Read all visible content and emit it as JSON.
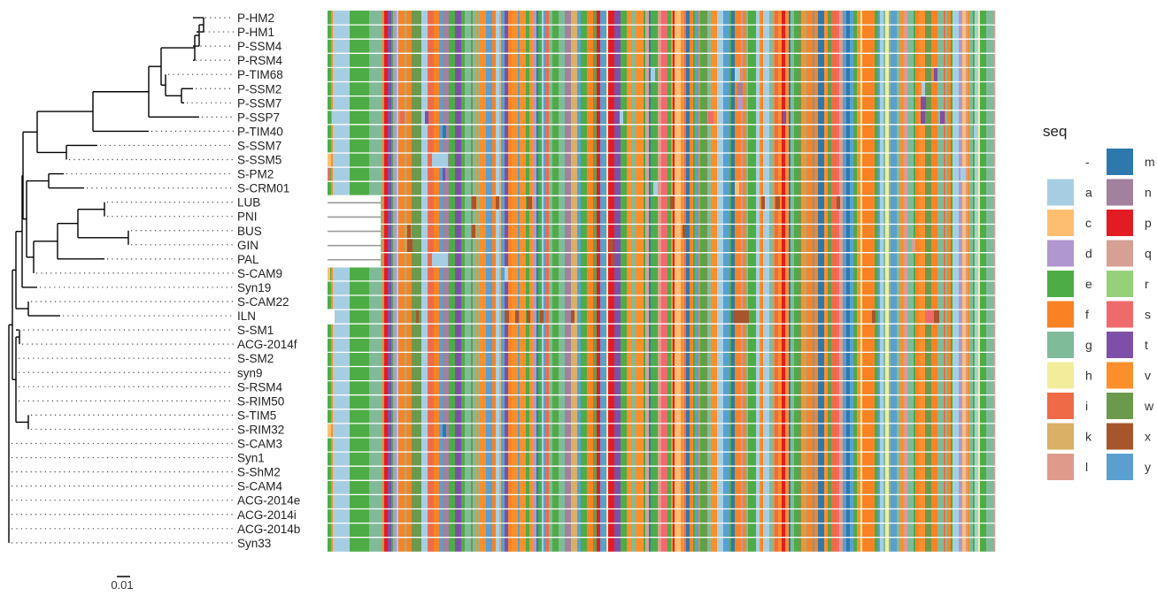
{
  "taxa": [
    "P-HM2",
    "P-HM1",
    "P-SSM4",
    "P-RSM4",
    "P-TIM68",
    "P-SSM2",
    "P-SSM7",
    "P-SSP7",
    "P-TIM40",
    "S-SSM7",
    "S-SSM5",
    "S-PM2",
    "S-CRM01",
    "LUB",
    "PNI",
    "BUS",
    "GIN",
    "PAL",
    "S-CAM9",
    "Syn19",
    "S-CAM22",
    "ILN",
    "S-SM1",
    "ACG-2014f",
    "S-SM2",
    "syn9",
    "S-RSM4",
    "S-RIM50",
    "S-TIM5",
    "S-RIM32",
    "S-CAM3",
    "Syn1",
    "S-ShM2",
    "S-CAM4",
    "ACG-2014e",
    "ACG-2014i",
    "ACG-2014b",
    "Syn33"
  ],
  "scale_bar": {
    "label": "0.01"
  },
  "legend": {
    "title": "seq",
    "items": [
      {
        "code": "-",
        "color": "#ffffff"
      },
      {
        "code": "a",
        "color": "#a6cee3"
      },
      {
        "code": "c",
        "color": "#fdbf6f"
      },
      {
        "code": "d",
        "color": "#b197cf"
      },
      {
        "code": "e",
        "color": "#4dac45"
      },
      {
        "code": "f",
        "color": "#f98324"
      },
      {
        "code": "g",
        "color": "#7fbb99"
      },
      {
        "code": "h",
        "color": "#f2ec9b"
      },
      {
        "code": "i",
        "color": "#ef6b48"
      },
      {
        "code": "k",
        "color": "#d9b065"
      },
      {
        "code": "l",
        "color": "#df9a8c"
      },
      {
        "code": "m",
        "color": "#2d79ad"
      },
      {
        "code": "n",
        "color": "#a1819e"
      },
      {
        "code": "p",
        "color": "#e31b23"
      },
      {
        "code": "q",
        "color": "#d6a095"
      },
      {
        "code": "r",
        "color": "#95d07a"
      },
      {
        "code": "s",
        "color": "#ef6a6a"
      },
      {
        "code": "t",
        "color": "#7e4fa8"
      },
      {
        "code": "v",
        "color": "#fb8f2c"
      },
      {
        "code": "w",
        "color": "#6b9a4c"
      },
      {
        "code": "x",
        "color": "#a8552d"
      },
      {
        "code": "y",
        "color": "#5a9fd0"
      }
    ]
  }
}
